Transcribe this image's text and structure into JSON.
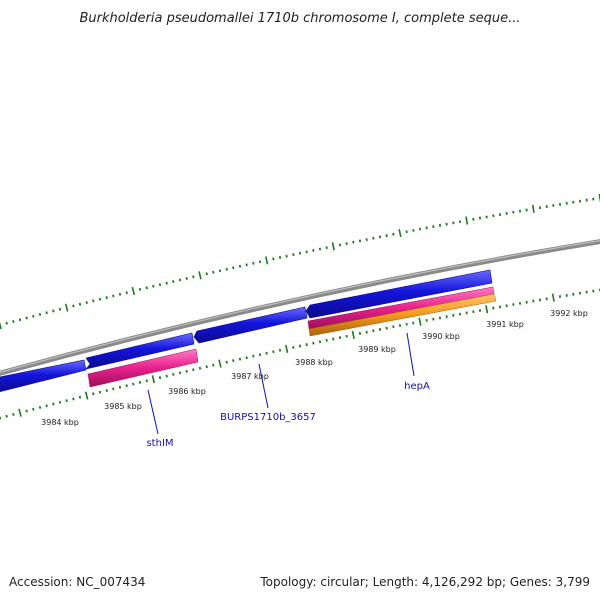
{
  "title": "Burkholderia pseudomallei 1710b chromosome I, complete seque...",
  "footer": {
    "accession": "Accession: NC_007434",
    "topology": "Topology: circular; Length: 4,126,292 bp; Genes: 3,799"
  },
  "scale_labels": [
    "3984 kbp",
    "3985 kbp",
    "3986 kbp",
    "3987 kbp",
    "3988 kbp",
    "3989 kbp",
    "3990 kbp",
    "3991 kbp",
    "3992 kbp"
  ],
  "gene_labels": [
    "sthIM",
    "BURPS1710b_3657",
    "hepA"
  ],
  "colors": {
    "backbone": "#8a8a8a",
    "cds_forward": "#1414dc",
    "gene_pink": "#e8208c",
    "gene_orange": "#f39a1c",
    "ticks": "#1d7a1d",
    "label": "#1111aa"
  }
}
